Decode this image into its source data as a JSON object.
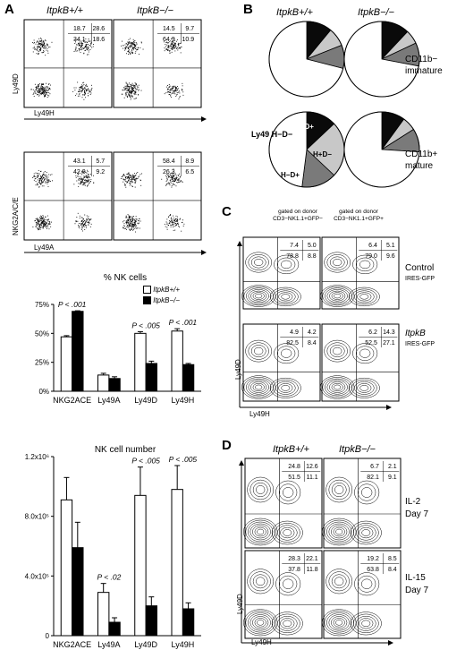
{
  "panels": {
    "A": "A",
    "B": "B",
    "C": "C",
    "D": "D"
  },
  "genotypes": {
    "wt": "ItpkB+/+",
    "ko": "ItpkB−/−"
  },
  "flowA": {
    "ylabel1": "Ly49D",
    "xlabel1": "Ly49H",
    "ylabel2": "NKG2A/C/E",
    "xlabel2": "Ly49A",
    "row1": {
      "wt": [
        "18.7",
        "28.6",
        "34.1",
        "18.6"
      ],
      "ko": [
        "14.5",
        "9.7",
        "64.9",
        "10.9"
      ]
    },
    "row2": {
      "wt": [
        "43.1",
        "5.7",
        "42.0",
        "9.2"
      ],
      "ko": [
        "58.4",
        "8.9",
        "26.3",
        "6.5"
      ]
    }
  },
  "pieB": {
    "rows": [
      "CD11b− immature",
      "CD11b+ mature"
    ],
    "seg_labels": {
      "dd": "H+D+",
      "light": "H+D−",
      "mid": "H−D+",
      "white": "Ly49 H−D−"
    },
    "colors": {
      "black": "#0a0a0a",
      "light": "#c8c8c8",
      "mid": "#7a7a7a",
      "white": "#ffffff"
    },
    "fractions": {
      "wt_imm": [
        0.11,
        0.08,
        0.1,
        0.71
      ],
      "ko_imm": [
        0.12,
        0.06,
        0.1,
        0.72
      ],
      "wt_mat": [
        0.13,
        0.24,
        0.15,
        0.48
      ],
      "ko_mat": [
        0.1,
        0.06,
        0.1,
        0.74
      ]
    }
  },
  "flowC": {
    "col1": "gated on donor CD3−NK1.1+GFP−",
    "col2": "gated on donor CD3−NK1.1+GFP+",
    "row1": {
      "name": "Control",
      "sub": "IRES-GFP",
      "c1": [
        "7.4",
        "5.0",
        "78.8",
        "8.8"
      ],
      "c2": [
        "6.4",
        "5.1",
        "79.0",
        "9.6"
      ]
    },
    "row2": {
      "name": "ItpkB",
      "sub": "IRES-GFP",
      "c1": [
        "4.9",
        "4.2",
        "82.5",
        "8.4"
      ],
      "c2": [
        "6.2",
        "14.3",
        "52.5",
        "27.1"
      ]
    },
    "ylabel": "Ly49D",
    "xlabel": "Ly49H"
  },
  "flowD": {
    "row1": {
      "name": "IL-2",
      "sub": "Day 7",
      "wt": [
        "24.8",
        "12.6",
        "51.5",
        "11.1"
      ],
      "ko": [
        "6.7",
        "2.1",
        "82.1",
        "9.1"
      ]
    },
    "row2": {
      "name": "IL-15",
      "sub": "Day 7",
      "wt": [
        "28.3",
        "22.1",
        "37.8",
        "11.8"
      ],
      "ko": [
        "19.2",
        "8.5",
        "63.8",
        "8.4"
      ]
    },
    "ylabel": "Ly49D",
    "xlabel": "Ly49H"
  },
  "chart_data": [
    {
      "type": "bar",
      "title": "% NK cells",
      "categories": [
        "NKG2ACE",
        "Ly49A",
        "Ly49D",
        "Ly49H"
      ],
      "series": [
        {
          "name": "ItpkB+/+",
          "values": [
            47,
            14,
            50,
            52
          ],
          "color": "#ffffff"
        },
        {
          "name": "ItpkB−/−",
          "values": [
            69,
            11,
            24,
            23
          ],
          "color": "#000000"
        }
      ],
      "errors": [
        [
          1,
          1.5,
          1.5,
          2
        ],
        [
          0.5,
          1.5,
          2,
          1
        ]
      ],
      "annotations": [
        "P < .001",
        "",
        "P < .005",
        "P < .001"
      ],
      "ylim": [
        0,
        75
      ],
      "yticks": [
        "0%",
        "25%",
        "50%",
        "75%"
      ]
    },
    {
      "type": "bar",
      "title": "NK cell number",
      "categories": [
        "NKG2ACE",
        "Ly49A",
        "Ly49D",
        "Ly49H"
      ],
      "series": [
        {
          "name": "ItpkB+/+",
          "values": [
            910000,
            290000,
            940000,
            980000
          ],
          "color": "#ffffff"
        },
        {
          "name": "ItpkB−/−",
          "values": [
            590000,
            90000,
            200000,
            180000
          ],
          "color": "#000000"
        }
      ],
      "errors": [
        [
          150000,
          60000,
          190000,
          160000
        ],
        [
          170000,
          30000,
          60000,
          40000
        ]
      ],
      "annotations": [
        "",
        "P < .02",
        "P < .005",
        "P < .005"
      ],
      "ylim": [
        0,
        1200000
      ],
      "yticks": [
        "0",
        "4.0x10⁵",
        "8.0x10⁵",
        "1.2x10⁶"
      ]
    }
  ]
}
